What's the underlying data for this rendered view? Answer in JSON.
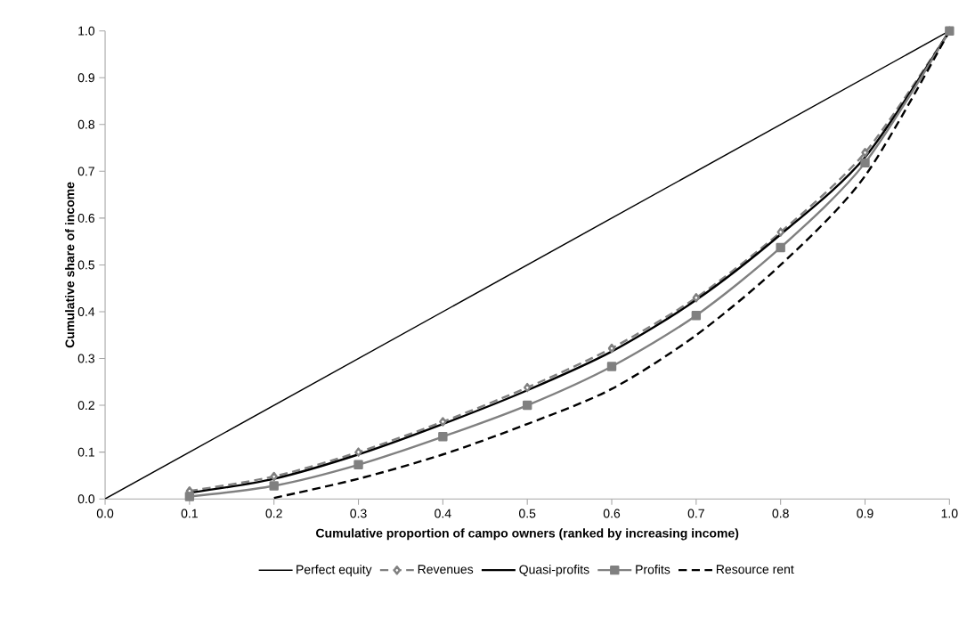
{
  "chart_data": {
    "type": "line",
    "xlabel": "Cumulative proportion of campo owners (ranked by increasing income)",
    "ylabel": "Cumulative share of income",
    "xlim": [
      0,
      1
    ],
    "ylim": [
      0,
      1
    ],
    "xticks": [
      {
        "value": 0,
        "label": "0.0"
      },
      {
        "value": 0.1,
        "label": "0.1"
      },
      {
        "value": 0.2,
        "label": "0.2"
      },
      {
        "value": 0.3,
        "label": "0.3"
      },
      {
        "value": 0.4,
        "label": "0.4"
      },
      {
        "value": 0.5,
        "label": "0.5"
      },
      {
        "value": 0.6,
        "label": "0.6"
      },
      {
        "value": 0.7,
        "label": "0.7"
      },
      {
        "value": 0.8,
        "label": "0.8"
      },
      {
        "value": 0.9,
        "label": "0.9"
      },
      {
        "value": 1,
        "label": "1.0"
      }
    ],
    "yticks": [
      {
        "value": 0,
        "label": "0.0"
      },
      {
        "value": 0.1,
        "label": "0.1"
      },
      {
        "value": 0.2,
        "label": "0.2"
      },
      {
        "value": 0.3,
        "label": "0.3"
      },
      {
        "value": 0.4,
        "label": "0.4"
      },
      {
        "value": 0.5,
        "label": "0.5"
      },
      {
        "value": 0.6,
        "label": "0.6"
      },
      {
        "value": 0.7,
        "label": "0.7"
      },
      {
        "value": 0.8,
        "label": "0.8"
      },
      {
        "value": 0.9,
        "label": "0.9"
      },
      {
        "value": 1,
        "label": "1.0"
      }
    ],
    "legend": "bottom",
    "grid": false,
    "series": [
      {
        "name": "Perfect equity",
        "color": "#000000",
        "x": [
          0,
          1
        ],
        "values": [
          0,
          1
        ],
        "marker": "none",
        "line_style": "solid"
      },
      {
        "name": "Revenues",
        "color": "#808080",
        "x": [
          0.1,
          0.2,
          0.3,
          0.4,
          0.5,
          0.6,
          0.7,
          0.8,
          0.9,
          1
        ],
        "values": [
          0.017,
          0.048,
          0.1,
          0.165,
          0.238,
          0.322,
          0.43,
          0.57,
          0.74,
          1.0
        ],
        "marker": "diamond",
        "line_style": "dashed"
      },
      {
        "name": "Quasi-profits",
        "color": "#000000",
        "x": [
          0.1,
          0.2,
          0.3,
          0.4,
          0.5,
          0.6,
          0.7,
          0.8,
          0.9,
          1
        ],
        "values": [
          0.013,
          0.043,
          0.095,
          0.16,
          0.232,
          0.315,
          0.425,
          0.565,
          0.73,
          1.0
        ],
        "marker": "none",
        "line_style": "solid"
      },
      {
        "name": "Profits",
        "color": "#808080",
        "x": [
          0.1,
          0.2,
          0.3,
          0.4,
          0.5,
          0.6,
          0.7,
          0.8,
          0.9,
          1
        ],
        "values": [
          0.005,
          0.028,
          0.073,
          0.133,
          0.2,
          0.283,
          0.392,
          0.537,
          0.718,
          1.0
        ],
        "marker": "square",
        "line_style": "solid"
      },
      {
        "name": "Resource rent",
        "color": "#000000",
        "x": [
          0.2,
          0.3,
          0.4,
          0.5,
          0.6,
          0.7,
          0.8,
          0.9,
          1
        ],
        "values": [
          0.002,
          0.043,
          0.095,
          0.16,
          0.235,
          0.35,
          0.5,
          0.69,
          1.0
        ],
        "marker": "none",
        "line_style": "dashed"
      }
    ]
  }
}
